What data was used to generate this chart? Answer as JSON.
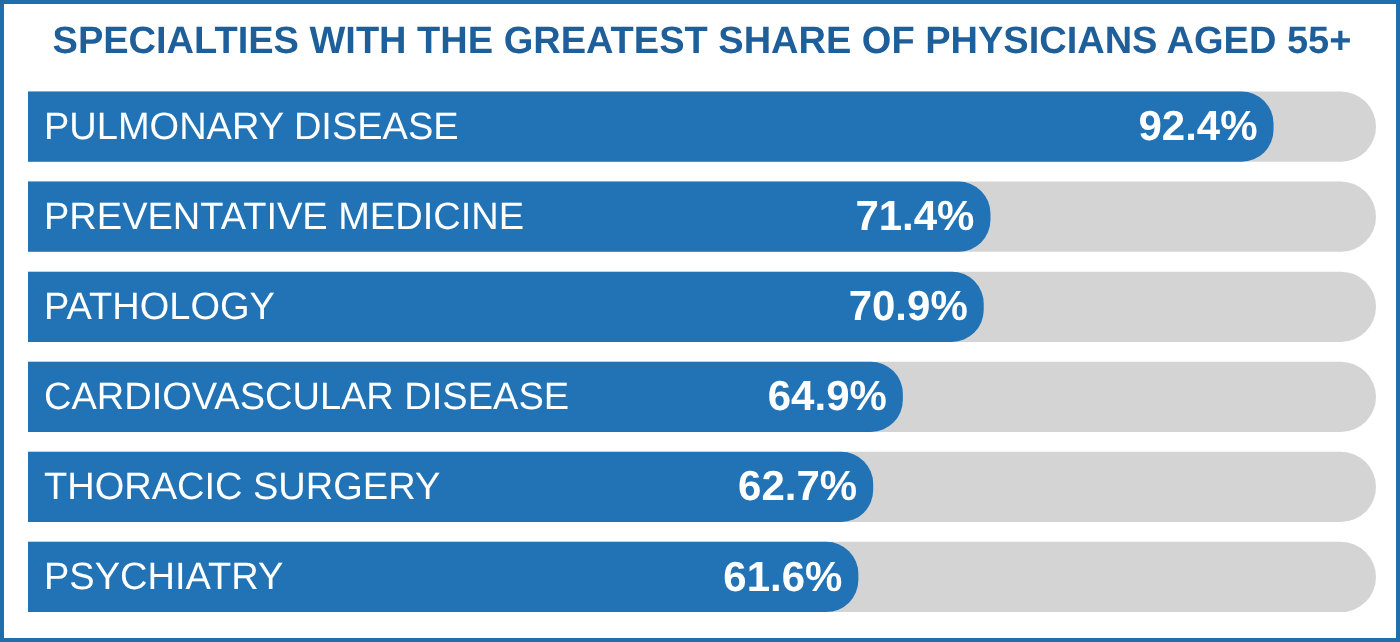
{
  "chart_data": {
    "type": "bar",
    "orientation": "horizontal",
    "title": "SPECIALTIES WITH THE GREATEST SHARE OF PHYSICIANS AGED 55+",
    "categories": [
      "PULMONARY DISEASE",
      "PREVENTATIVE MEDICINE",
      "PATHOLOGY",
      "CARDIOVASCULAR DISEASE",
      "THORACIC SURGERY",
      "PSYCHIATRY"
    ],
    "values": [
      92.4,
      71.4,
      70.9,
      64.9,
      62.7,
      61.6
    ],
    "value_labels": [
      "92.4%",
      "71.4%",
      "70.9%",
      "64.9%",
      "62.7%",
      "61.6%"
    ],
    "color": "#2273b5",
    "xlim": [
      0,
      100
    ],
    "tick_labels": false,
    "legend": false
  }
}
